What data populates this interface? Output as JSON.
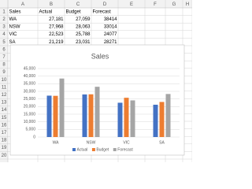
{
  "sheet": {
    "columns": [
      "A",
      "B",
      "C",
      "D",
      "E",
      "F",
      "G",
      "H"
    ],
    "row_numbers": [
      "1",
      "2",
      "3",
      "4",
      "5",
      "6",
      "7",
      "8",
      "9",
      "10",
      "11",
      "12",
      "13",
      "14",
      "15",
      "16",
      "17",
      "18",
      "19",
      "20"
    ],
    "table": {
      "rows": [
        [
          "Sales",
          "Actual",
          "Budget",
          "Forecast"
        ],
        [
          "WA",
          "27,181",
          "27,059",
          "38414"
        ],
        [
          "NSW",
          "27,968",
          "28,063",
          "33014"
        ],
        [
          "VIC",
          "22,523",
          "25,788",
          "24077"
        ],
        [
          "SA",
          "21,219",
          "23,031",
          "28271"
        ]
      ]
    }
  },
  "chart_data": {
    "type": "bar",
    "title": "Sales",
    "categories": [
      "WA",
      "NSW",
      "VIC",
      "SA"
    ],
    "series": [
      {
        "name": "Actual",
        "color": "#4472c4",
        "values": [
          27181,
          27968,
          22523,
          21219
        ]
      },
      {
        "name": "Budget",
        "color": "#ed7d31",
        "values": [
          27059,
          28063,
          25788,
          23031
        ]
      },
      {
        "name": "Forecast",
        "color": "#a5a5a5",
        "values": [
          38414,
          33014,
          24077,
          28271
        ]
      }
    ],
    "ylim": [
      0,
      45000
    ],
    "yticks": [
      0,
      {
        "value": 5000,
        "label": "5,000"
      },
      {
        "value": 10000,
        "label": "10,000"
      },
      {
        "value": 15000,
        "label": "15,000"
      },
      {
        "value": 20000,
        "label": "20,000"
      },
      {
        "value": 25000,
        "label": "25,000"
      },
      {
        "value": 30000,
        "label": "30,000"
      },
      {
        "value": 35000,
        "label": "35,000"
      },
      {
        "value": 40000,
        "label": "40,000"
      },
      {
        "value": 45000,
        "label": "45,000"
      }
    ],
    "grid": true,
    "legend": "bottom"
  }
}
